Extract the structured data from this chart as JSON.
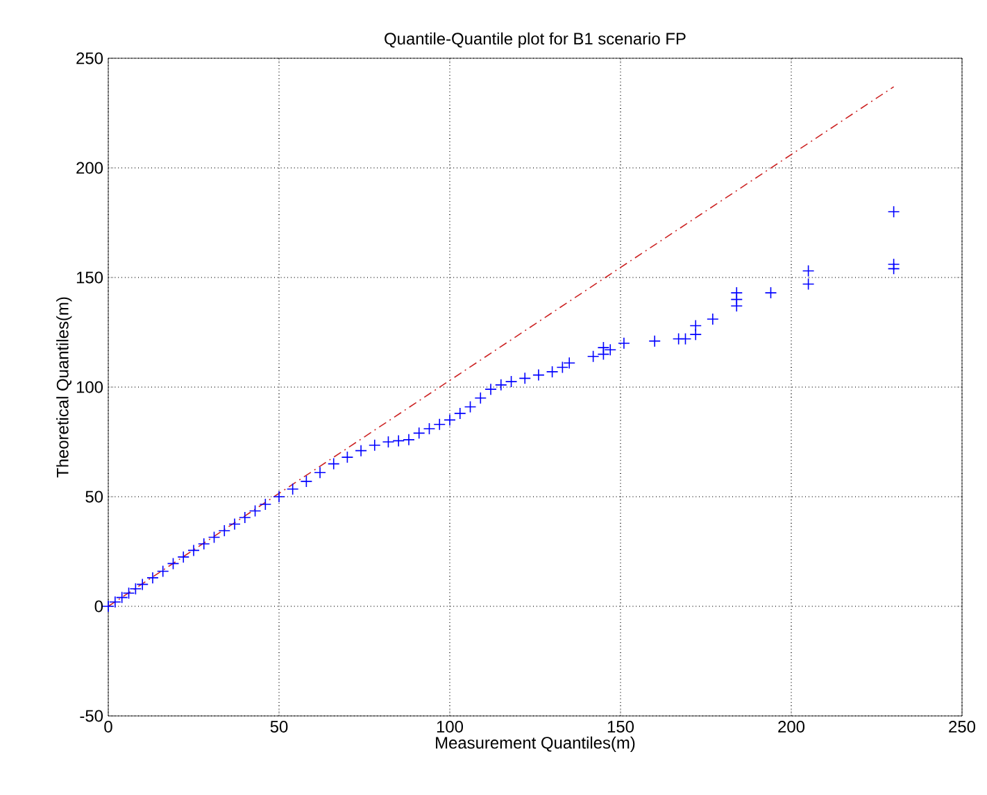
{
  "chart_data": {
    "type": "scatter",
    "title": "Quantile-Quantile plot for B1 scenario FP",
    "xlabel": "Measurement Quantiles(m)",
    "ylabel": "Theoretical Quantiles(m)",
    "xlim": [
      0,
      250
    ],
    "ylim": [
      -50,
      250
    ],
    "xticks": [
      0,
      50,
      100,
      150,
      200,
      250
    ],
    "yticks": [
      -50,
      0,
      50,
      100,
      150,
      200,
      250
    ],
    "grid": true,
    "series": [
      {
        "color": "#0000ff",
        "marker": "cross",
        "x": [
          0,
          2,
          4,
          6,
          8,
          10,
          13,
          16,
          19,
          22,
          25,
          28,
          31,
          34,
          37,
          40,
          43,
          46,
          50,
          54,
          58,
          62,
          66,
          70,
          74,
          78,
          82,
          85,
          88,
          91,
          94,
          97,
          100,
          103,
          106,
          109,
          112,
          115,
          118,
          122,
          126,
          130,
          133,
          135,
          142,
          145,
          145,
          147,
          151,
          160,
          167,
          169,
          172,
          172,
          177,
          184,
          184,
          184,
          194,
          205,
          205,
          230,
          230,
          230
        ],
        "values": [
          0,
          2,
          4,
          6,
          8,
          10,
          13,
          16,
          19.5,
          22.5,
          25.5,
          28.5,
          31.5,
          34.5,
          37.5,
          40.5,
          43.5,
          46.5,
          50,
          53.5,
          57,
          61,
          65,
          68,
          71,
          73.5,
          75,
          75.5,
          76,
          79,
          81,
          83,
          85,
          88,
          91,
          95,
          99,
          101,
          102.5,
          104,
          105.5,
          107,
          109,
          111,
          114,
          118,
          115,
          117,
          120,
          121,
          122,
          122,
          124,
          128,
          131,
          137,
          140,
          143,
          143,
          147,
          153,
          154,
          156,
          180
        ]
      },
      {
        "type": "line",
        "color": "#cc2222",
        "marker": "none",
        "line_style": "dashed",
        "x": [
          0,
          230
        ],
        "values": [
          0,
          237
        ]
      }
    ]
  }
}
